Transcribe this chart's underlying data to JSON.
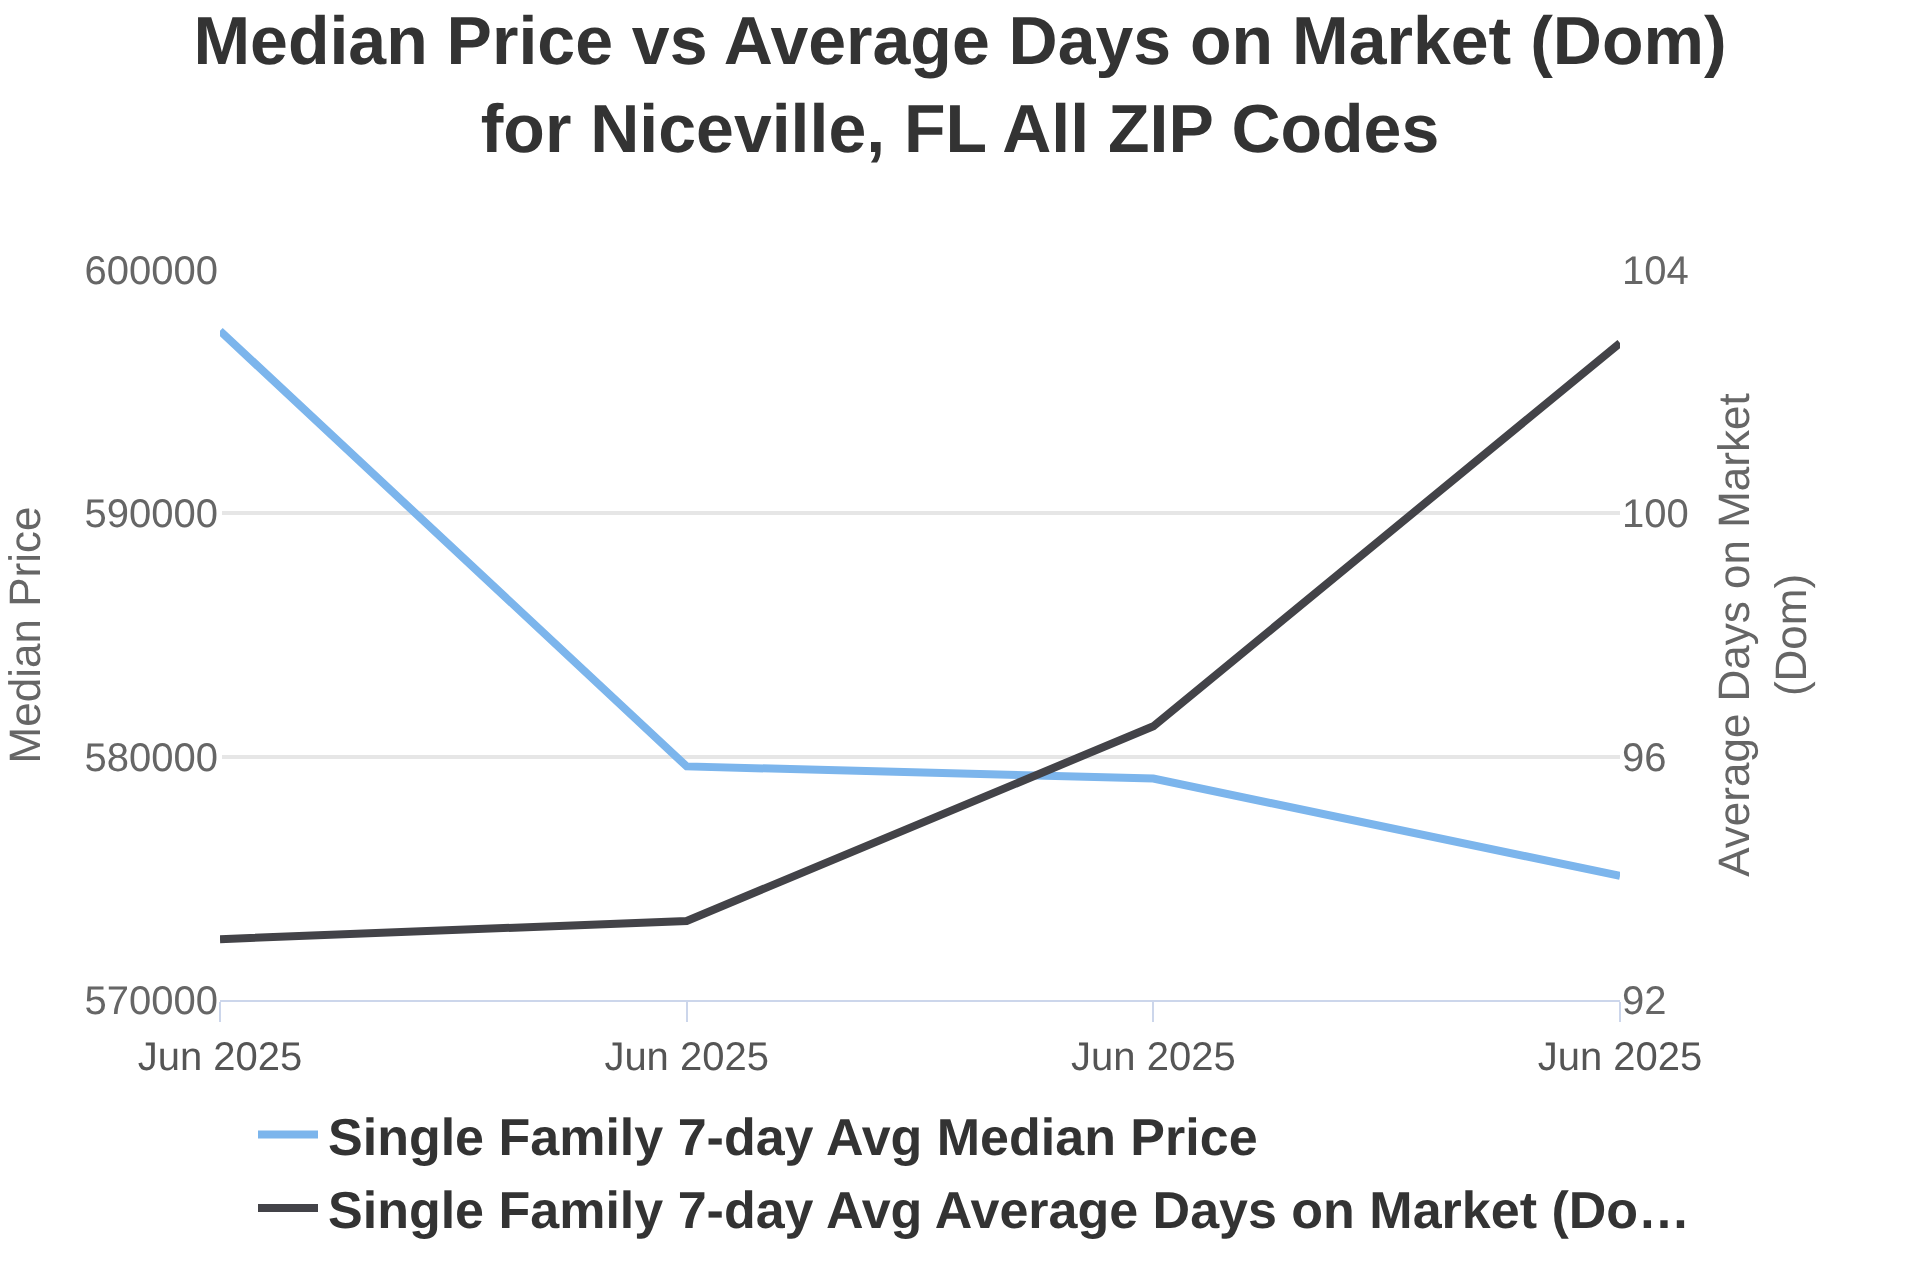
{
  "chart_data": {
    "type": "line",
    "title": "Median Price vs Average Days on Market (Dom) for Niceville, FL All ZIP Codes",
    "ylabel": "Median Price",
    "y2label": "Average Days on Market (Dom)",
    "categories": [
      "Jun 2025",
      "Jun 2025",
      "Jun 2025",
      "Jun 2025"
    ],
    "series": [
      {
        "name": "Single Family 7-day Avg Median Price",
        "color": "#7cb5ec",
        "values": [
          597500,
          579600,
          579100,
          575100
        ]
      },
      {
        "name": "Single Family 7-day Avg Average Days on Market (Do…",
        "color": "#434348",
        "values": [
          93.0,
          93.3,
          96.5,
          102.8
        ],
        "axis": "y2"
      }
    ],
    "ylim": [
      570000,
      600000
    ],
    "yticks": [
      570000,
      580000,
      590000,
      600000
    ],
    "y2lim": [
      92,
      104
    ],
    "y2ticks": [
      92,
      96,
      100,
      104
    ],
    "grid": "y",
    "legend": "bottom",
    "marker": "none",
    "line_style": "solid"
  }
}
